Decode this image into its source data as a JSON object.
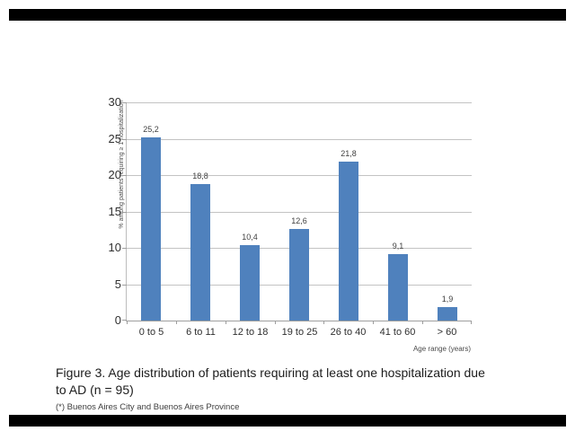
{
  "frame": {
    "accent_bar_color": "#000000"
  },
  "chart_data": {
    "type": "bar",
    "categories": [
      "0 to 5",
      "6 to 11",
      "12 to 18",
      "19 to 25",
      "26 to 40",
      "41 to 60",
      "> 60"
    ],
    "values": [
      25.2,
      18.8,
      10.4,
      12.6,
      21.8,
      9.1,
      1.9
    ],
    "value_labels": [
      "25,2",
      "18,8",
      "10,4",
      "12,6",
      "21,8",
      "9,1",
      "1,9"
    ],
    "title": "",
    "xlabel": "Age range (years)",
    "ylabel": "% among patients requiring ≥ 1 hospitalization",
    "ylim": [
      0,
      30
    ],
    "yticks": [
      0,
      5,
      10,
      15,
      20,
      25,
      30
    ],
    "ytick_labels": [
      "0",
      "5",
      "10",
      "15",
      "20",
      "25",
      "30"
    ],
    "grid": "horizontal",
    "legend": "none",
    "bar_color": "#4f81bd"
  },
  "caption": {
    "line1": "Figure 3. Age distribution of patients requiring at least one hospitalization due",
    "line2": "to AD  (n = 95)"
  },
  "footnote": "(*) Buenos Aires City and Buenos Aires Province"
}
